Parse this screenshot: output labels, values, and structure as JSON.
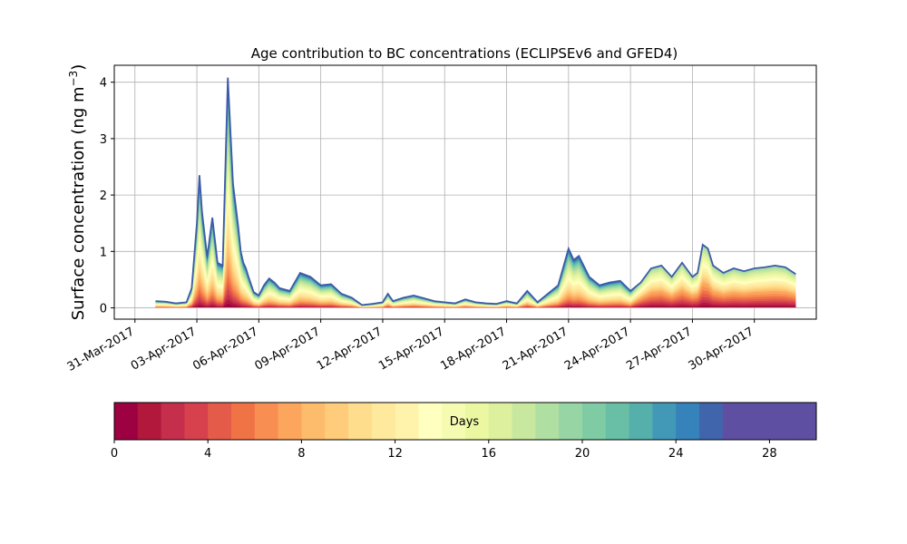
{
  "chart_data": {
    "type": "area",
    "stacked": true,
    "title": "Age contribution to BC concentrations (ECLIPSEv6 and GFED4)",
    "ylabel": "Surface concentration (ng m",
    "ylabel_superscript": "−3",
    "ylabel_close": ")",
    "xlabel": "",
    "grid": true,
    "x_axis": {
      "type": "date",
      "range": [
        "2017-03-30",
        "2017-05-03"
      ],
      "tick_values": [
        "2017-03-31",
        "2017-04-03",
        "2017-04-06",
        "2017-04-09",
        "2017-04-12",
        "2017-04-15",
        "2017-04-18",
        "2017-04-21",
        "2017-04-24",
        "2017-04-27",
        "2017-04-30"
      ],
      "tick_labels": [
        "31-Mar-2017",
        "03-Apr-2017",
        "06-Apr-2017",
        "09-Apr-2017",
        "12-Apr-2017",
        "15-Apr-2017",
        "18-Apr-2017",
        "21-Apr-2017",
        "24-Apr-2017",
        "27-Apr-2017",
        "30-Apr-2017"
      ]
    },
    "y_axis": {
      "range": [
        -0.2,
        4.3
      ],
      "tick_values": [
        0,
        1,
        2,
        3,
        4
      ],
      "tick_labels": [
        "0",
        "1",
        "2",
        "3",
        "4"
      ]
    },
    "total_concentration": {
      "x": [
        "2017-04-01T00",
        "2017-04-01T12",
        "2017-04-02T00",
        "2017-04-02T12",
        "2017-04-02T18",
        "2017-04-03T00",
        "2017-04-03T03",
        "2017-04-03T06",
        "2017-04-03T12",
        "2017-04-03T18",
        "2017-04-04T00",
        "2017-04-04T06",
        "2017-04-04T12",
        "2017-04-04T18",
        "2017-04-05T00",
        "2017-04-05T03",
        "2017-04-05T06",
        "2017-04-05T09",
        "2017-04-05T12",
        "2017-04-05T18",
        "2017-04-06T00",
        "2017-04-06T06",
        "2017-04-06T12",
        "2017-04-06T18",
        "2017-04-07T00",
        "2017-04-07T12",
        "2017-04-08T00",
        "2017-04-08T12",
        "2017-04-09T00",
        "2017-04-09T12",
        "2017-04-10T00",
        "2017-04-10T12",
        "2017-04-11T00",
        "2017-04-11T12",
        "2017-04-12T00",
        "2017-04-12T06",
        "2017-04-12T12",
        "2017-04-13T00",
        "2017-04-13T12",
        "2017-04-14T00",
        "2017-04-14T12",
        "2017-04-15T00",
        "2017-04-15T12",
        "2017-04-16T00",
        "2017-04-16T12",
        "2017-04-17T00",
        "2017-04-17T12",
        "2017-04-18T00",
        "2017-04-18T12",
        "2017-04-19T00",
        "2017-04-19T12",
        "2017-04-20T00",
        "2017-04-20T12",
        "2017-04-21T00",
        "2017-04-21T06",
        "2017-04-21T12",
        "2017-04-22T00",
        "2017-04-22T12",
        "2017-04-23T00",
        "2017-04-23T12",
        "2017-04-24T00",
        "2017-04-24T12",
        "2017-04-25T00",
        "2017-04-25T12",
        "2017-04-26T00",
        "2017-04-26T12",
        "2017-04-27T00",
        "2017-04-27T06",
        "2017-04-27T12",
        "2017-04-27T18",
        "2017-04-28T00",
        "2017-04-28T12",
        "2017-04-29T00",
        "2017-04-29T12",
        "2017-04-30T00",
        "2017-04-30T12",
        "2017-05-01T00",
        "2017-05-01T12",
        "2017-05-02T00"
      ],
      "values": [
        0.12,
        0.11,
        0.08,
        0.1,
        0.35,
        1.5,
        2.35,
        1.7,
        0.9,
        1.6,
        0.8,
        0.75,
        4.08,
        2.2,
        1.45,
        1.0,
        0.8,
        0.7,
        0.55,
        0.28,
        0.22,
        0.4,
        0.52,
        0.45,
        0.35,
        0.3,
        0.62,
        0.55,
        0.4,
        0.42,
        0.25,
        0.18,
        0.05,
        0.07,
        0.1,
        0.25,
        0.12,
        0.18,
        0.22,
        0.17,
        0.12,
        0.1,
        0.08,
        0.15,
        0.1,
        0.08,
        0.07,
        0.12,
        0.08,
        0.3,
        0.1,
        0.25,
        0.4,
        1.05,
        0.85,
        0.92,
        0.55,
        0.4,
        0.45,
        0.48,
        0.3,
        0.45,
        0.7,
        0.75,
        0.55,
        0.8,
        0.55,
        0.62,
        1.12,
        1.05,
        0.75,
        0.62,
        0.7,
        0.65,
        0.7,
        0.72,
        0.75,
        0.72,
        0.6
      ]
    },
    "series_note_colors": {
      "mostly_young_days": "#fdae61",
      "mostly_mid_days": "#ffffbf",
      "mostly_old_days": "#3288bd"
    },
    "colorbar": {
      "label": "Days",
      "range": [
        0,
        30
      ],
      "tick_values": [
        0,
        4,
        8,
        12,
        16,
        20,
        24,
        28
      ],
      "tick_labels": [
        "0",
        "4",
        "8",
        "12",
        "16",
        "20",
        "24",
        "28"
      ],
      "bands": 30,
      "colors": [
        "#9e0142",
        "#b2183c",
        "#c62f4c",
        "#d7414e",
        "#e45c49",
        "#f07346",
        "#f98e52",
        "#fca55d",
        "#fdbb6c",
        "#fecc7b",
        "#fedd8d",
        "#fee99d",
        "#fff2aa",
        "#ffffbf",
        "#f6fbb2",
        "#ecf7a1",
        "#dcf09e",
        "#c7e89e",
        "#b0dfa2",
        "#97d5a4",
        "#7fcba4",
        "#69bfa6",
        "#55b0ac",
        "#4199b7",
        "#3682ba",
        "#4065ad",
        "#5e4fa2",
        "#5e4fa2",
        "#5e4fa2",
        "#5e4fa2"
      ]
    }
  }
}
